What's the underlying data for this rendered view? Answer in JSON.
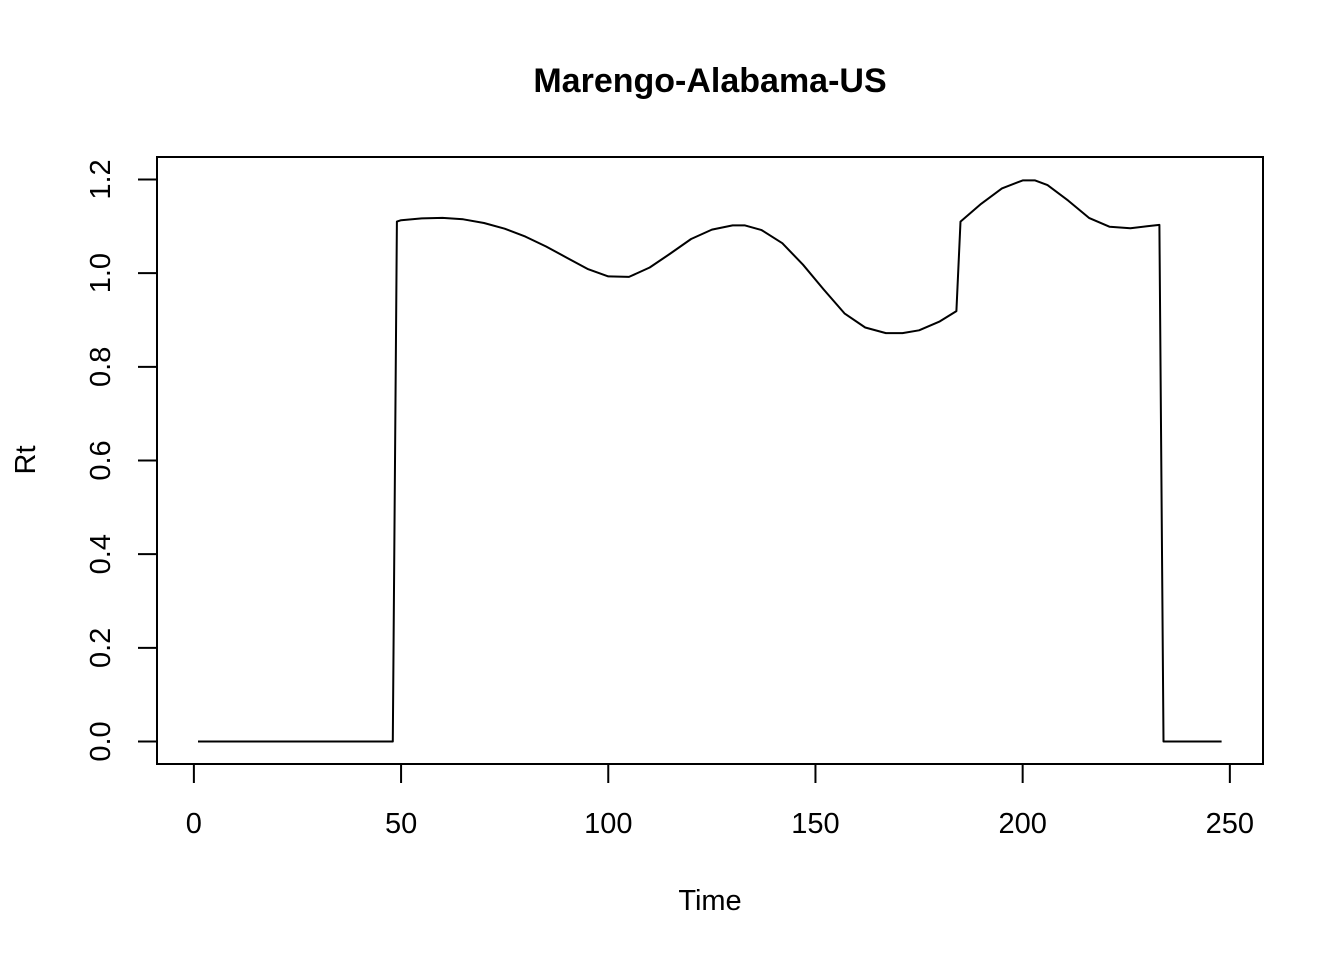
{
  "chart_data": {
    "type": "line",
    "title": "Marengo-Alabama-US",
    "xlabel": "Time",
    "ylabel": "Rt",
    "xlim": [
      -8.9,
      258
    ],
    "ylim": [
      -0.048,
      1.248
    ],
    "xticks": [
      0,
      50,
      100,
      150,
      200,
      250
    ],
    "yticks": [
      0.0,
      0.2,
      0.4,
      0.6,
      0.8,
      1.0,
      1.2
    ],
    "xtick_labels": [
      "0",
      "50",
      "100",
      "150",
      "200",
      "250"
    ],
    "ytick_labels": [
      "0.0",
      "0.2",
      "0.4",
      "0.6",
      "0.8",
      "1.0",
      "1.2"
    ],
    "grid": false,
    "legend": "none",
    "line_color": "#000000",
    "series": [
      {
        "x": [
          1,
          48,
          49,
          50,
          55,
          60,
          65,
          70,
          75,
          80,
          85,
          90,
          95,
          100,
          105,
          110,
          115,
          120,
          125,
          130,
          133,
          137,
          142,
          147,
          152,
          157,
          162,
          167,
          171,
          175,
          180,
          184,
          185,
          190,
          195,
          200,
          203,
          206,
          211,
          216,
          221,
          226,
          230,
          233,
          234,
          248
        ],
        "y": [
          0.0,
          0.0,
          1.11,
          1.113,
          1.117,
          1.118,
          1.115,
          1.107,
          1.095,
          1.078,
          1.057,
          1.033,
          1.009,
          0.993,
          0.992,
          1.012,
          1.042,
          1.073,
          1.093,
          1.102,
          1.102,
          1.092,
          1.064,
          1.018,
          0.965,
          0.914,
          0.884,
          0.872,
          0.872,
          0.878,
          0.897,
          0.919,
          1.11,
          1.148,
          1.181,
          1.198,
          1.198,
          1.188,
          1.155,
          1.118,
          1.099,
          1.096,
          1.1,
          1.103,
          0.0,
          0.0
        ]
      }
    ]
  }
}
